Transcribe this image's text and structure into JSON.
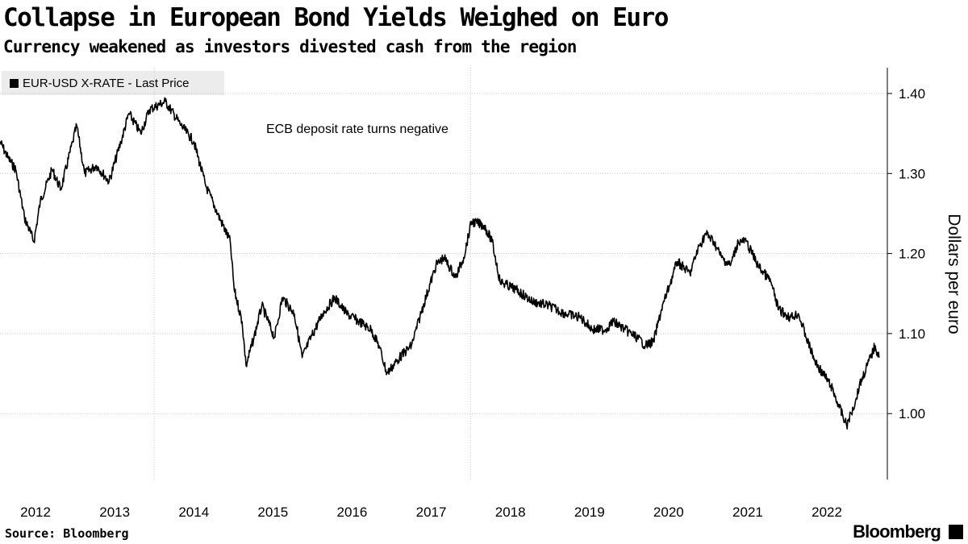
{
  "title": "Collapse in European Bond Yields Weighed on Euro",
  "subtitle": "Currency weakened as investors divested cash from the region",
  "legend": "EUR-USD X-RATE - Last Price",
  "source": "Source: Bloomberg",
  "logo": "Bloomberg",
  "chart_data": {
    "type": "line",
    "title": "Collapse in European Bond Yields Weighed on Euro",
    "ylabel": "Dollars per euro",
    "xlabel": "",
    "ylim": [
      0.92,
      1.44
    ],
    "xlim": [
      2012.05,
      2023.26
    ],
    "yticks": [
      "1.40",
      "1.30",
      "1.20",
      "1.10",
      "1.00"
    ],
    "ytick_values": [
      1.4,
      1.3,
      1.2,
      1.1,
      1.0
    ],
    "xticks": [
      "2012",
      "2013",
      "2014",
      "2015",
      "2016",
      "2017",
      "2018",
      "2019",
      "2020",
      "2021",
      "2022"
    ],
    "annotation": "ECB deposit rate turns negative",
    "annotation_x": 2014.45,
    "vgrid": [
      2014,
      2018
    ],
    "series": [
      {
        "name": "EUR-USD X-RATE - Last Price",
        "color": "#000000",
        "x": [
          2012.05,
          2012.15,
          2012.25,
          2012.36,
          2012.48,
          2012.56,
          2012.71,
          2012.82,
          2012.97,
          2013.02,
          2013.12,
          2013.27,
          2013.43,
          2013.58,
          2013.68,
          2013.83,
          2013.94,
          2014.14,
          2014.34,
          2014.5,
          2014.65,
          2014.8,
          2014.96,
          2015.01,
          2015.11,
          2015.16,
          2015.26,
          2015.36,
          2015.52,
          2015.62,
          2015.77,
          2015.87,
          2015.98,
          2016.13,
          2016.28,
          2016.43,
          2016.59,
          2016.74,
          2016.84,
          2016.94,
          2017.1,
          2017.25,
          2017.4,
          2017.56,
          2017.66,
          2017.81,
          2017.91,
          2018.01,
          2018.17,
          2018.27,
          2018.37,
          2018.57,
          2018.78,
          2018.98,
          2019.19,
          2019.39,
          2019.54,
          2019.7,
          2019.8,
          2019.95,
          2020.1,
          2020.21,
          2020.31,
          2020.41,
          2020.51,
          2020.61,
          2020.77,
          2020.87,
          2020.97,
          2021.07,
          2021.17,
          2021.28,
          2021.38,
          2021.48,
          2021.63,
          2021.79,
          2021.89,
          2022.04,
          2022.14,
          2022.24,
          2022.35,
          2022.45,
          2022.55,
          2022.65,
          2022.75,
          2022.86,
          2022.91,
          2023.01,
          2023.11,
          2023.16
        ],
        "y": [
          1.34,
          1.32,
          1.305,
          1.245,
          1.215,
          1.265,
          1.305,
          1.28,
          1.34,
          1.36,
          1.3,
          1.31,
          1.29,
          1.34,
          1.375,
          1.35,
          1.38,
          1.39,
          1.36,
          1.34,
          1.285,
          1.25,
          1.215,
          1.155,
          1.115,
          1.06,
          1.095,
          1.135,
          1.095,
          1.145,
          1.125,
          1.07,
          1.095,
          1.125,
          1.145,
          1.125,
          1.115,
          1.105,
          1.085,
          1.05,
          1.07,
          1.085,
          1.135,
          1.185,
          1.195,
          1.17,
          1.195,
          1.24,
          1.235,
          1.215,
          1.165,
          1.155,
          1.14,
          1.135,
          1.125,
          1.12,
          1.105,
          1.105,
          1.115,
          1.105,
          1.095,
          1.085,
          1.09,
          1.13,
          1.16,
          1.19,
          1.175,
          1.205,
          1.225,
          1.215,
          1.195,
          1.185,
          1.215,
          1.215,
          1.185,
          1.165,
          1.13,
          1.12,
          1.125,
          1.095,
          1.065,
          1.05,
          1.035,
          1.01,
          0.985,
          1.015,
          1.035,
          1.06,
          1.085,
          1.07
        ]
      }
    ]
  }
}
